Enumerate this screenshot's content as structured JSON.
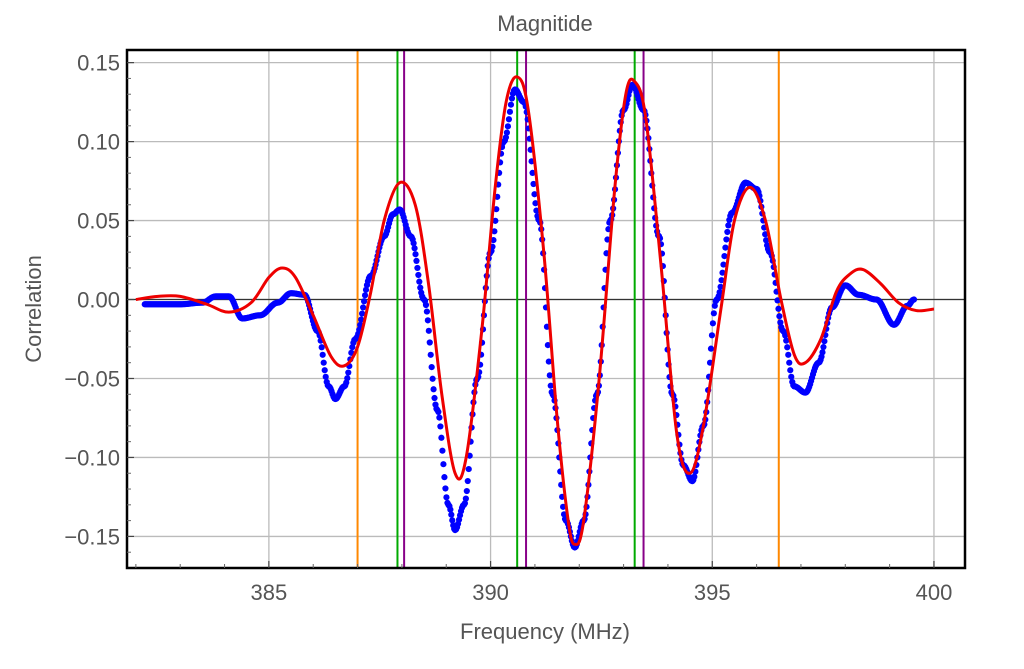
{
  "chart_data": {
    "type": "line",
    "title": "Magnitide",
    "xlabel": "Frequency (MHz)",
    "ylabel": "Correlation",
    "xlim": [
      381.8,
      400.7
    ],
    "ylim": [
      -0.17,
      0.158
    ],
    "x_ticks": [
      385,
      390,
      395,
      400
    ],
    "y_ticks": [
      0.15,
      0.1,
      0.05,
      0.0,
      -0.05,
      -0.1,
      -0.15
    ],
    "x_tick_labels": [
      "385",
      "390",
      "395",
      "400"
    ],
    "y_tick_labels": [
      "0.15",
      "0.10",
      "0.05",
      "0.00",
      "−0.05",
      "−0.10",
      "−0.15"
    ],
    "grid": true,
    "frame_color": "#000000",
    "series": [
      {
        "type": "scatter",
        "color": "#0000ff",
        "points": [
          [
            382.2,
            -0.003
          ],
          [
            383.0,
            -0.003
          ],
          [
            383.5,
            -0.002
          ],
          [
            383.8,
            0.002
          ],
          [
            384.1,
            0.002
          ],
          [
            384.4,
            -0.012
          ],
          [
            384.8,
            -0.01
          ],
          [
            385.2,
            -0.002
          ],
          [
            385.5,
            0.004
          ],
          [
            385.8,
            0.003
          ],
          [
            386.1,
            -0.02
          ],
          [
            386.35,
            -0.055
          ],
          [
            386.5,
            -0.063
          ],
          [
            386.7,
            -0.055
          ],
          [
            386.95,
            -0.025
          ],
          [
            387.3,
            0.015
          ],
          [
            387.6,
            0.04
          ],
          [
            387.8,
            0.054
          ],
          [
            387.95,
            0.057
          ],
          [
            388.2,
            0.04
          ],
          [
            388.5,
            0.0
          ],
          [
            388.8,
            -0.07
          ],
          [
            389.05,
            -0.13
          ],
          [
            389.2,
            -0.146
          ],
          [
            389.4,
            -0.13
          ],
          [
            389.7,
            -0.05
          ],
          [
            390.0,
            0.03
          ],
          [
            390.3,
            0.1
          ],
          [
            390.55,
            0.133
          ],
          [
            390.75,
            0.125
          ],
          [
            391.1,
            0.05
          ],
          [
            391.4,
            -0.06
          ],
          [
            391.7,
            -0.14
          ],
          [
            391.9,
            -0.157
          ],
          [
            392.1,
            -0.14
          ],
          [
            392.4,
            -0.06
          ],
          [
            392.7,
            0.05
          ],
          [
            393.0,
            0.12
          ],
          [
            393.2,
            0.136
          ],
          [
            393.45,
            0.12
          ],
          [
            393.8,
            0.04
          ],
          [
            394.1,
            -0.06
          ],
          [
            394.35,
            -0.105
          ],
          [
            394.55,
            -0.115
          ],
          [
            394.8,
            -0.08
          ],
          [
            395.1,
            0.0
          ],
          [
            395.45,
            0.055
          ],
          [
            395.75,
            0.074
          ],
          [
            396.0,
            0.07
          ],
          [
            396.3,
            0.03
          ],
          [
            396.6,
            -0.02
          ],
          [
            396.85,
            -0.055
          ],
          [
            397.1,
            -0.059
          ],
          [
            397.4,
            -0.04
          ],
          [
            397.7,
            -0.005
          ],
          [
            398.0,
            0.009
          ],
          [
            398.3,
            0.003
          ],
          [
            398.7,
            0.0
          ],
          [
            399.1,
            -0.016
          ],
          [
            399.4,
            -0.004
          ],
          [
            399.55,
            0.0
          ]
        ]
      },
      {
        "type": "line",
        "color": "#ee0000",
        "points": [
          [
            382.0,
            0.0
          ],
          [
            382.5,
            0.002
          ],
          [
            383.0,
            0.002
          ],
          [
            383.6,
            -0.003
          ],
          [
            384.1,
            -0.008
          ],
          [
            384.6,
            -0.002
          ],
          [
            385.0,
            0.014
          ],
          [
            385.3,
            0.02
          ],
          [
            385.6,
            0.014
          ],
          [
            386.0,
            -0.01
          ],
          [
            386.4,
            -0.036
          ],
          [
            386.7,
            -0.042
          ],
          [
            387.0,
            -0.03
          ],
          [
            387.3,
            0.005
          ],
          [
            387.6,
            0.05
          ],
          [
            387.95,
            0.074
          ],
          [
            388.3,
            0.06
          ],
          [
            388.6,
            0.01
          ],
          [
            388.9,
            -0.06
          ],
          [
            389.2,
            -0.11
          ],
          [
            389.45,
            -0.1
          ],
          [
            389.8,
            -0.02
          ],
          [
            390.1,
            0.07
          ],
          [
            390.35,
            0.125
          ],
          [
            390.6,
            0.141
          ],
          [
            390.85,
            0.12
          ],
          [
            391.2,
            0.03
          ],
          [
            391.5,
            -0.075
          ],
          [
            391.75,
            -0.14
          ],
          [
            391.9,
            -0.155
          ],
          [
            392.1,
            -0.14
          ],
          [
            392.45,
            -0.05
          ],
          [
            392.8,
            0.07
          ],
          [
            393.05,
            0.13
          ],
          [
            393.25,
            0.138
          ],
          [
            393.5,
            0.115
          ],
          [
            393.85,
            0.02
          ],
          [
            394.2,
            -0.085
          ],
          [
            394.5,
            -0.11
          ],
          [
            394.8,
            -0.08
          ],
          [
            395.2,
            -0.005
          ],
          [
            395.5,
            0.05
          ],
          [
            395.85,
            0.071
          ],
          [
            396.2,
            0.05
          ],
          [
            396.55,
            0.0
          ],
          [
            396.85,
            -0.035
          ],
          [
            397.1,
            -0.04
          ],
          [
            397.45,
            -0.025
          ],
          [
            397.8,
            0.005
          ],
          [
            398.1,
            0.016
          ],
          [
            398.4,
            0.019
          ],
          [
            398.8,
            0.01
          ],
          [
            399.2,
            -0.002
          ],
          [
            399.6,
            -0.007
          ],
          [
            400.0,
            -0.006
          ]
        ]
      }
    ],
    "vertical_lines": [
      {
        "x": 387.0,
        "color": "#ff8800"
      },
      {
        "x": 396.5,
        "color": "#ff8800"
      },
      {
        "x": 387.9,
        "color": "#00aa00"
      },
      {
        "x": 390.6,
        "color": "#00aa00"
      },
      {
        "x": 393.25,
        "color": "#00aa00"
      },
      {
        "x": 388.05,
        "color": "#880088"
      },
      {
        "x": 390.8,
        "color": "#880088"
      },
      {
        "x": 393.45,
        "color": "#880088"
      }
    ]
  }
}
